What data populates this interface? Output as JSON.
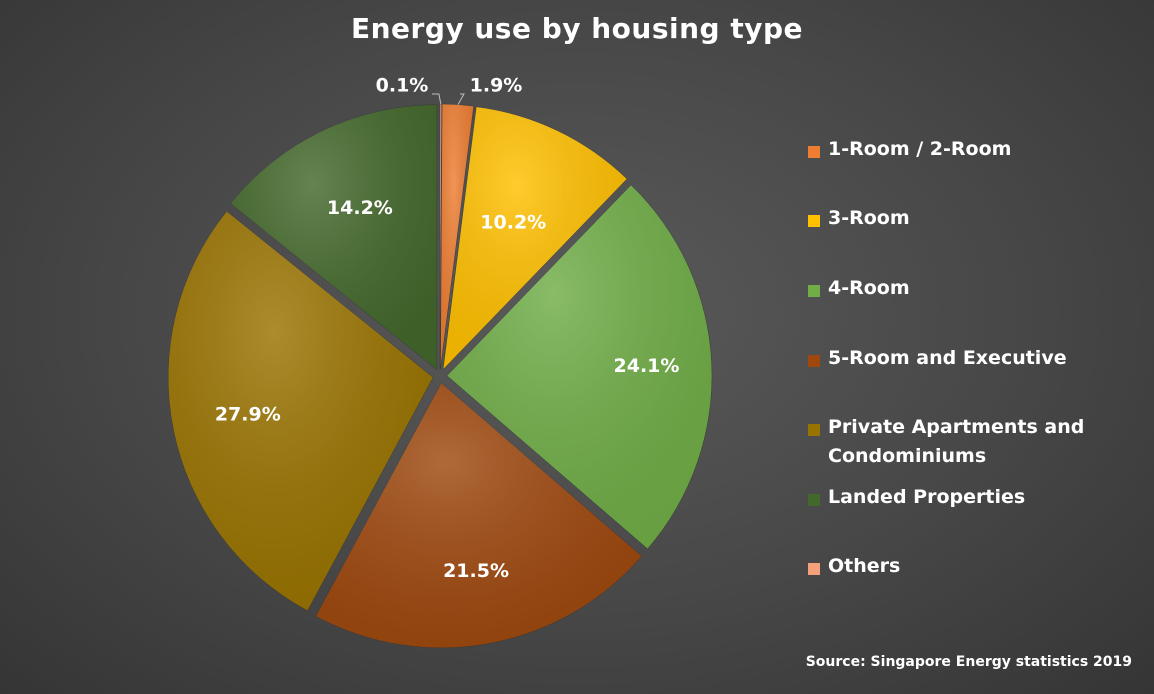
{
  "chart_data": {
    "type": "pie",
    "title": "Energy use by housing type",
    "slices": [
      {
        "label": "Others",
        "value": 0.1,
        "display": "0.1%",
        "color": "#F4A07A"
      },
      {
        "label": "1-Room / 2-Room",
        "value": 1.9,
        "display": "1.9%",
        "color": "#ED7D31"
      },
      {
        "label": "3-Room",
        "value": 10.2,
        "display": "10.2%",
        "color": "#FFC000"
      },
      {
        "label": "4-Room",
        "value": 24.1,
        "display": "24.1%",
        "color": "#70AD47"
      },
      {
        "label": "5-Room and Executive",
        "value": 21.5,
        "display": "21.5%",
        "color": "#9E480E"
      },
      {
        "label": "Private Apartments and Condominiums",
        "value": 27.9,
        "display": "27.9%",
        "color": "#997300"
      },
      {
        "label": "Landed Properties",
        "value": 14.2,
        "display": "14.2%",
        "color": "#43682B"
      }
    ],
    "legend": [
      {
        "label": "1-Room / 2-Room",
        "color": "#ED7D31"
      },
      {
        "label": "3-Room",
        "color": "#FFC000"
      },
      {
        "label": "4-Room",
        "color": "#70AD47"
      },
      {
        "label": "5-Room and Executive",
        "color": "#9E480E"
      },
      {
        "label": "Private Apartments and Condominiums",
        "color": "#997300"
      },
      {
        "label": "Landed Properties",
        "color": "#43682B"
      },
      {
        "label": "Others",
        "color": "#F4A07A"
      }
    ],
    "legend_position": "right",
    "source": "Source: Singapore Energy statistics 2019"
  }
}
